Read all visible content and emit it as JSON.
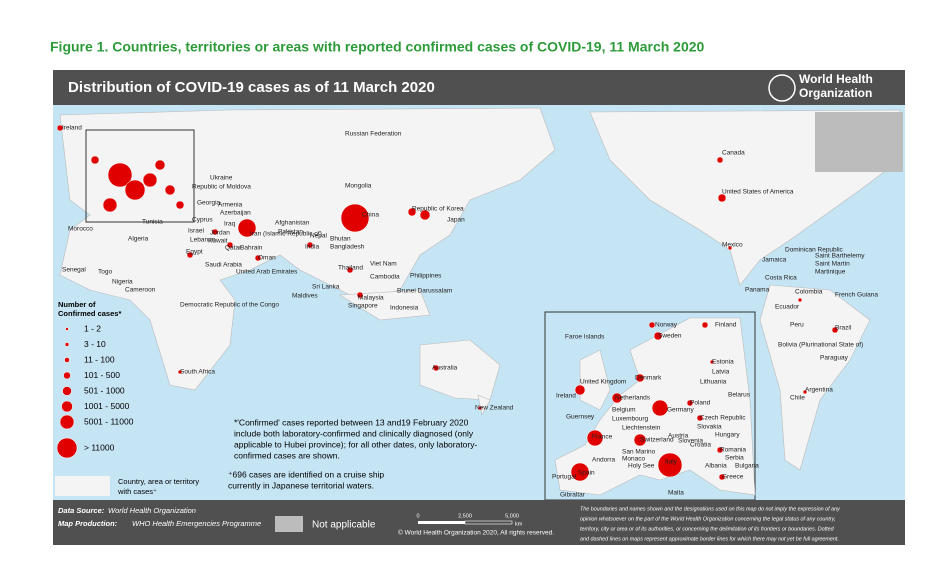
{
  "figure_caption": "Figure 1. Countries, territories or areas with reported confirmed cases of COVID-19, 11 March 2020",
  "header": {
    "title": "Distribution of COVID-19 cases as of 11 March 2020",
    "org": [
      "World Health",
      "Organization"
    ]
  },
  "legend": {
    "title": [
      "Number of",
      "Confirmed cases*"
    ],
    "bins": [
      "1 - 2",
      "3 - 10",
      "11 - 100",
      "101 - 500",
      "501 - 1000",
      "1001 - 5000",
      "5001 - 11000",
      "> 11000"
    ],
    "country_note": [
      "Country, area or territory",
      "with cases⁺"
    ]
  },
  "notes": [
    [
      "*'Confirmed' cases reported between 13 and19 February 2020",
      "include both laboratory-confirmed and clinically diagnosed (only",
      "applicable to Hubei province); for all other dates, only laboratory-",
      "confirmed cases are shown."
    ],
    [
      "⁺696 cases are identified on a cruise ship",
      "currently in Japanese territorial waters."
    ]
  ],
  "footer": {
    "source_label": "Data Source:",
    "source": "World Health Organization",
    "production_label": "Map Production:",
    "production": "WHO Health Emergencies Programme",
    "not_applicable": "Not applicable",
    "copyright": "© World Health Organization 2020, All rights reserved.",
    "disclaimer": [
      "The boundaries and names shown and the designations used on this map do not imply the expression of any",
      "opinion whatsoever on the part of the World Health Organization concerning the legal status of any country,",
      "territory, city or area or of its authorities, or concerning the delimitation of its frontiers or boundaries. Dotted",
      "and dashed lines on maps represent approximate border lines for which there may not yet be full agreement."
    ]
  },
  "scale": {
    "ticks": [
      "0",
      "2,500",
      "5,000"
    ],
    "unit": "km"
  },
  "labels": [
    "Ireland",
    "Russian Federation",
    "Ukraine",
    "Republic of Moldova",
    "Georgia",
    "Armenia",
    "Azerbaijan",
    "Tunisia",
    "Morocco",
    "Algeria",
    "Mongolia",
    "Republic of Korea",
    "Japan",
    "China",
    "Iran (Islamic Republic of)",
    "Afghanistan",
    "Pakistan",
    "Nepal",
    "India",
    "Bhutan",
    "Bangladesh",
    "Sri Lanka",
    "Maldives",
    "Thailand",
    "Viet Nam",
    "Cambodia",
    "Philippines",
    "Brunei Darussalam",
    "Malaysia",
    "Singapore",
    "Indonesia",
    "Australia",
    "New Zealand",
    "Egypt",
    "Senegal",
    "Nigeria",
    "Cameroon",
    "Togo",
    "Democratic Republic of the Congo",
    "South Africa",
    "Canada",
    "United States of America",
    "Mexico",
    "Dominican Republic",
    "Jamaica",
    "Costa Rica",
    "Panama",
    "Ecuador",
    "Colombia",
    "Peru",
    "Brazil",
    "Bolivia (Plurinational State of)",
    "Paraguay",
    "Argentina",
    "Chile",
    "French Guiana",
    "Martinique",
    "Saint Martin",
    "Saint Barthelemy",
    "Saudi Arabia",
    "Qatar",
    "Bahrain",
    "United Arab Emirates",
    "Oman",
    "Iraq",
    "Kuwait",
    "Jordan",
    "Israel",
    "Lebanon",
    "Cyprus"
  ],
  "inset_labels": [
    "Faroe Islands",
    "Norway",
    "Sweden",
    "Finland",
    "Estonia",
    "Latvia",
    "Lithuania",
    "Belarus",
    "Denmark",
    "United Kingdom",
    "Ireland",
    "Netherlands",
    "Belgium",
    "Luxembourg",
    "Germany",
    "Poland",
    "Czech Republic",
    "Slovakia",
    "Austria",
    "Hungary",
    "Romania",
    "Guernsey",
    "France",
    "Switzerland",
    "Liechtenstein",
    "Italy",
    "San Marino",
    "Monaco",
    "Holy See",
    "Andorra",
    "Spain",
    "Portugal",
    "Gibraltar",
    "Malta",
    "Greece",
    "Croatia",
    "Slovenia",
    "Serbia",
    "Albania",
    "Bulgaria"
  ]
}
